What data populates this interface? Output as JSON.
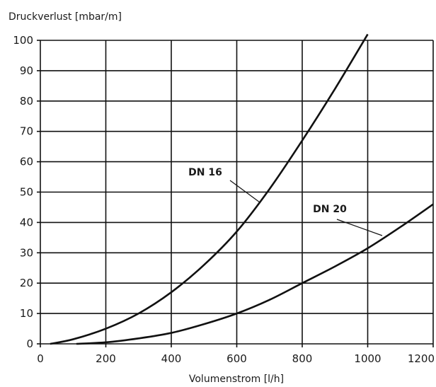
{
  "chart_data": {
    "type": "line",
    "title": "",
    "ylabel": "Druckverlust [mbar/m]",
    "xlabel": "Volumenstrom [l/h]",
    "xlim": [
      0,
      1200
    ],
    "ylim": [
      0,
      100
    ],
    "xticks": [
      0,
      200,
      400,
      600,
      800,
      1000,
      1200
    ],
    "yticks": [
      0,
      10,
      20,
      30,
      40,
      50,
      60,
      70,
      80,
      90,
      100
    ],
    "grid": true,
    "legend": "none",
    "series": [
      {
        "name": "DN 16",
        "x": [
          30,
          100,
          200,
          300,
          400,
          500,
          600,
          700,
          800,
          900,
          1000
        ],
        "y": [
          0,
          1.5,
          5,
          10,
          17,
          26,
          37,
          51,
          67,
          84,
          102
        ]
      },
      {
        "name": "DN 20",
        "x": [
          110,
          200,
          300,
          400,
          500,
          600,
          700,
          800,
          900,
          1000,
          1100,
          1200
        ],
        "y": [
          0,
          0.5,
          1.8,
          3.6,
          6.5,
          10,
          14.5,
          20,
          25.5,
          31.5,
          38.5,
          46
        ]
      }
    ]
  }
}
